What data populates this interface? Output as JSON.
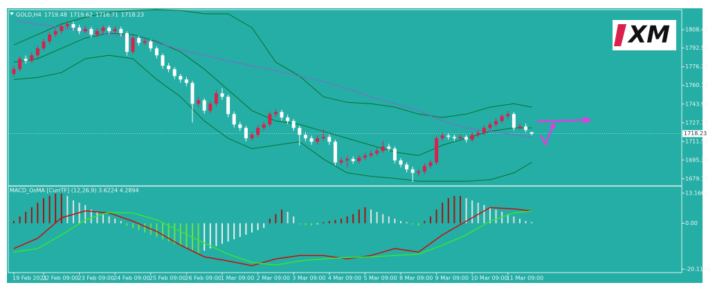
{
  "chart_data": {
    "type": "candlestick",
    "title": "GOLD,H4",
    "title_values": [
      1719.48,
      1719.62,
      1716.71,
      1718.23
    ],
    "categories": [
      "19 Feb 2021",
      null,
      null,
      null,
      null,
      "22 Feb 09:00",
      null,
      null,
      null,
      null,
      null,
      "23 Feb 09:00",
      null,
      null,
      null,
      null,
      null,
      "24 Feb 09:00",
      null,
      null,
      null,
      null,
      null,
      "25 Feb 09:00",
      null,
      null,
      null,
      null,
      null,
      "26 Feb 09:00",
      null,
      null,
      null,
      null,
      null,
      "1 Mar 09:00",
      null,
      null,
      null,
      null,
      null,
      "2 Mar 09:00",
      null,
      null,
      null,
      null,
      null,
      "3 Mar 09:00",
      null,
      null,
      null,
      null,
      null,
      "4 Mar 09:00",
      null,
      null,
      null,
      null,
      null,
      "5 Mar 09:00",
      null,
      null,
      null,
      null,
      null,
      "8 Mar 09:00",
      null,
      null,
      null,
      null,
      null,
      "9 Mar 09:00",
      null,
      null,
      null,
      null,
      null,
      "10 Mar 09:00",
      null,
      null,
      null,
      null,
      null,
      "11 Mar 09:00",
      null,
      null,
      null,
      null
    ],
    "ohlc": [
      [
        1770.0,
        1777.0,
        1767.5,
        1774.2
      ],
      [
        1774.2,
        1785.5,
        1772.0,
        1783.2
      ],
      [
        1783.2,
        1786.0,
        1779.0,
        1781.4
      ],
      [
        1781.4,
        1788.5,
        1779.5,
        1786.2
      ],
      [
        1786.2,
        1794.5,
        1784.0,
        1792.2
      ],
      [
        1792.2,
        1800.5,
        1790.0,
        1798.2
      ],
      [
        1798.2,
        1806.5,
        1796.0,
        1804.2
      ],
      [
        1804.2,
        1810.0,
        1802.0,
        1807.2
      ],
      [
        1807.2,
        1814.0,
        1805.0,
        1811.4
      ],
      [
        1811.4,
        1816.0,
        1809.0,
        1813.2
      ],
      [
        1813.2,
        1815.5,
        1807.5,
        1810.2
      ],
      [
        1810.2,
        1812.5,
        1804.5,
        1807.2
      ],
      [
        1807.2,
        1811.5,
        1805.0,
        1809.0
      ],
      [
        1809.0,
        1811.0,
        1801.5,
        1804.2
      ],
      [
        1804.2,
        1809.5,
        1802.0,
        1807.2
      ],
      [
        1807.2,
        1812.5,
        1805.0,
        1810.2
      ],
      [
        1810.2,
        1812.0,
        1804.5,
        1807.2
      ],
      [
        1807.2,
        1811.5,
        1805.0,
        1809.0
      ],
      [
        1809.0,
        1811.0,
        1802.5,
        1805.4
      ],
      [
        1805.4,
        1807.0,
        1786.0,
        1789.2
      ],
      [
        1789.2,
        1803.5,
        1787.0,
        1801.2
      ],
      [
        1801.2,
        1803.0,
        1794.5,
        1797.0
      ],
      [
        1797.0,
        1800.5,
        1795.0,
        1798.2
      ],
      [
        1798.2,
        1800.0,
        1789.5,
        1792.2
      ],
      [
        1792.2,
        1794.0,
        1783.5,
        1786.2
      ],
      [
        1786.2,
        1788.0,
        1774.5,
        1777.2
      ],
      [
        1777.2,
        1779.5,
        1771.5,
        1774.2
      ],
      [
        1774.2,
        1776.0,
        1765.5,
        1768.2
      ],
      [
        1768.2,
        1770.0,
        1762.5,
        1765.2
      ],
      [
        1765.2,
        1767.5,
        1759.5,
        1762.2
      ],
      [
        1762.2,
        1764.0,
        1728.0,
        1744.2
      ],
      [
        1744.2,
        1750.0,
        1741.5,
        1747.2
      ],
      [
        1747.2,
        1749.0,
        1735.5,
        1738.2
      ],
      [
        1738.2,
        1747.0,
        1736.0,
        1744.2
      ],
      [
        1744.2,
        1756.0,
        1742.0,
        1753.2
      ],
      [
        1753.2,
        1757.5,
        1747.5,
        1750.2
      ],
      [
        1750.2,
        1752.0,
        1732.5,
        1735.2
      ],
      [
        1735.2,
        1737.5,
        1723.5,
        1726.2
      ],
      [
        1726.2,
        1728.5,
        1720.5,
        1723.2
      ],
      [
        1723.2,
        1725.0,
        1711.5,
        1714.2
      ],
      [
        1714.2,
        1719.5,
        1712.0,
        1717.2
      ],
      [
        1717.2,
        1725.5,
        1715.0,
        1723.2
      ],
      [
        1723.2,
        1728.5,
        1721.0,
        1726.2
      ],
      [
        1726.2,
        1737.5,
        1724.0,
        1735.2
      ],
      [
        1735.2,
        1739.5,
        1733.0,
        1737.0
      ],
      [
        1737.0,
        1739.0,
        1729.5,
        1732.2
      ],
      [
        1732.2,
        1734.5,
        1726.5,
        1729.2
      ],
      [
        1729.2,
        1731.0,
        1720.5,
        1723.2
      ],
      [
        1723.2,
        1725.0,
        1708.0,
        1717.2
      ],
      [
        1717.2,
        1719.5,
        1711.5,
        1714.2
      ],
      [
        1714.2,
        1716.5,
        1708.5,
        1711.2
      ],
      [
        1711.2,
        1716.5,
        1709.0,
        1714.2
      ],
      [
        1714.2,
        1722.0,
        1712.0,
        1715.4
      ],
      [
        1715.4,
        1717.5,
        1708.5,
        1711.2
      ],
      [
        1711.2,
        1713.0,
        1690.5,
        1693.2
      ],
      [
        1693.2,
        1697.5,
        1691.0,
        1695.0
      ],
      [
        1695.0,
        1698.5,
        1689.0,
        1696.2
      ],
      [
        1696.2,
        1698.5,
        1692.0,
        1694.4
      ],
      [
        1694.4,
        1699.5,
        1692.5,
        1697.4
      ],
      [
        1697.4,
        1701.5,
        1695.5,
        1699.2
      ],
      [
        1699.2,
        1703.5,
        1697.0,
        1701.0
      ],
      [
        1701.0,
        1705.5,
        1699.0,
        1703.4
      ],
      [
        1703.4,
        1712.0,
        1701.5,
        1707.0
      ],
      [
        1707.0,
        1709.5,
        1703.0,
        1705.2
      ],
      [
        1705.2,
        1707.0,
        1692.5,
        1695.0
      ],
      [
        1695.0,
        1697.0,
        1689.0,
        1691.4
      ],
      [
        1691.4,
        1693.5,
        1684.5,
        1687.2
      ],
      [
        1687.2,
        1689.5,
        1676.5,
        1684.2
      ],
      [
        1684.2,
        1687.5,
        1681.5,
        1685.4
      ],
      [
        1685.4,
        1692.5,
        1683.0,
        1690.2
      ],
      [
        1690.2,
        1695.5,
        1688.0,
        1693.2
      ],
      [
        1693.2,
        1716.5,
        1691.0,
        1714.2
      ],
      [
        1714.2,
        1719.0,
        1712.0,
        1716.6
      ],
      [
        1716.6,
        1718.5,
        1713.0,
        1715.4
      ],
      [
        1715.4,
        1717.5,
        1711.5,
        1714.2
      ],
      [
        1714.2,
        1717.5,
        1712.0,
        1715.4
      ],
      [
        1715.4,
        1717.0,
        1710.5,
        1713.0
      ],
      [
        1713.0,
        1719.5,
        1711.0,
        1717.2
      ],
      [
        1717.2,
        1721.5,
        1715.0,
        1719.0
      ],
      [
        1719.0,
        1725.5,
        1717.0,
        1723.2
      ],
      [
        1723.2,
        1728.5,
        1721.0,
        1726.2
      ],
      [
        1726.2,
        1731.5,
        1724.0,
        1729.2
      ],
      [
        1729.2,
        1735.5,
        1727.0,
        1733.4
      ],
      [
        1733.4,
        1738.0,
        1731.0,
        1735.2
      ],
      [
        1735.2,
        1737.0,
        1721.0,
        1723.2
      ],
      [
        1723.2,
        1726.5,
        1721.5,
        1724.4
      ],
      [
        1724.4,
        1727.0,
        1719.5,
        1721.4
      ],
      [
        1719.48,
        1719.62,
        1716.71,
        1718.23
      ]
    ],
    "up_color": "#d8214b",
    "down_color": "#ffffff",
    "ylim": [
      1673.7,
      1825.8
    ],
    "yticks": [
      {
        "value": 1808.4,
        "label": "1808.40"
      },
      {
        "value": 1792.5,
        "label": "1792.50"
      },
      {
        "value": 1776.3,
        "label": "1776.30"
      },
      {
        "value": 1760.1,
        "label": "1760.10"
      },
      {
        "value": 1743.9,
        "label": "1743.90"
      },
      {
        "value": 1727.7,
        "label": "1727.70"
      },
      {
        "value": 1711.5,
        "label": "1711.50"
      },
      {
        "value": 1695.3,
        "label": "1695.30"
      },
      {
        "value": 1679.1,
        "label": "1679.10"
      }
    ],
    "last_price": 1718.23,
    "line_x": [
      0,
      4,
      8,
      12,
      16,
      20,
      24,
      28,
      32,
      36,
      40,
      44,
      48,
      52,
      56,
      60,
      64,
      68,
      72,
      76,
      80,
      84,
      87
    ],
    "lines": [
      {
        "color": "#0b6e2a",
        "values": [
          1795.2,
          1804.2,
          1813.2,
          1819.2,
          1823.4,
          1825.2,
          1825.8,
          1825.2,
          1822.2,
          1822.2,
          1810.2,
          1780.2,
          1768.2,
          1750.2,
          1745.4,
          1744.2,
          1741.2,
          1735.2,
          1732.2,
          1735.2,
          1741.2,
          1744.2,
          1741.2
        ]
      },
      {
        "color": "#0b6e2a",
        "values": [
          1780.2,
          1783.2,
          1792.2,
          1801.2,
          1805.4,
          1804.2,
          1798.2,
          1789.2,
          1774.2,
          1756.2,
          1738.2,
          1729.2,
          1726.2,
          1720.2,
          1714.2,
          1708.2,
          1702.2,
          1699.2,
          1708.2,
          1714.2,
          1720.2,
          1723.2,
          1723.2
        ]
      },
      {
        "color": "#0b6e2a",
        "values": [
          1765.2,
          1767.0,
          1771.2,
          1783.2,
          1786.2,
          1783.2,
          1765.2,
          1750.2,
          1729.2,
          1714.2,
          1705.2,
          1708.2,
          1711.2,
          1696.2,
          1684.2,
          1681.2,
          1679.4,
          1677.0,
          1677.0,
          1677.0,
          1678.2,
          1684.2,
          1693.2
        ]
      },
      {
        "color": "#8a62d0",
        "values": [
          1816.2,
          1813.2,
          1810.2,
          1807.2,
          1804.2,
          1801.2,
          1797.0,
          1791.0,
          1786.2,
          1781.4,
          1777.2,
          1773.0,
          1768.2,
          1763.4,
          1757.4,
          1750.2,
          1744.2,
          1738.2,
          1729.2,
          1723.2,
          1720.2,
          1717.2,
          1715.4
        ]
      }
    ],
    "logo": "XM",
    "indicator": {
      "type": "bar",
      "title": "MACD_OsMA [CurrTF] (12,26,9) 3.6224 4.2894",
      "values": [
        1,
        3,
        5,
        7,
        9,
        11,
        12,
        13,
        13,
        12,
        10,
        9,
        8,
        6,
        5,
        4,
        3,
        2,
        1,
        -1,
        -2,
        -3,
        -4,
        -5,
        -6,
        -7,
        -8,
        -9,
        -10,
        -11,
        -12,
        -13,
        -12,
        -11,
        -10,
        -9,
        -8,
        -7,
        -6,
        -5,
        -4,
        -3,
        -2,
        2,
        4,
        6,
        5,
        3,
        -0.5,
        -0.8,
        -1,
        -0.5,
        0.5,
        1,
        1.5,
        2,
        3,
        4,
        6,
        7,
        6,
        5,
        4,
        3,
        2,
        1,
        0.5,
        -0.5,
        -1,
        1,
        3,
        6,
        9,
        11,
        12,
        12,
        11,
        10,
        9,
        8,
        7,
        6,
        5,
        4,
        3,
        2,
        1,
        0.5
      ],
      "colors": {
        "rising_positive": "#a51212",
        "falling_positive": "#e4e4e4",
        "falling_negative": "#6fe04a",
        "rising_negative": "#f0f0f0"
      },
      "ylim": [
        -21.61,
        15.87
      ],
      "yticks": [
        13.1664,
        {
          "value": 0,
          "label": "0.00"
        },
        -20.1134
      ],
      "lines": [
        {
          "color": "#cc0a0a",
          "values": [
            -11.1,
            -6.6,
            2.4,
            5.4,
            4.5,
            0.9,
            -3.6,
            -9.6,
            -14.7,
            -16.5,
            -18.6,
            -15.6,
            -14.1,
            -14.1,
            -15.6,
            -14.1,
            -11.1,
            -12.6,
            -5.1,
            0.9,
            6.9,
            6.3,
            5.4
          ]
        },
        {
          "color": "#36e636",
          "values": [
            -12.6,
            -11.1,
            -5.1,
            1.5,
            4.8,
            4.5,
            1.5,
            -3.6,
            -8.7,
            -13.5,
            -17.1,
            -18.3,
            -16.5,
            -15.6,
            -15.0,
            -14.7,
            -14.1,
            -13.5,
            -9.6,
            -5.1,
            0.9,
            4.5,
            5.4
          ]
        }
      ]
    }
  }
}
